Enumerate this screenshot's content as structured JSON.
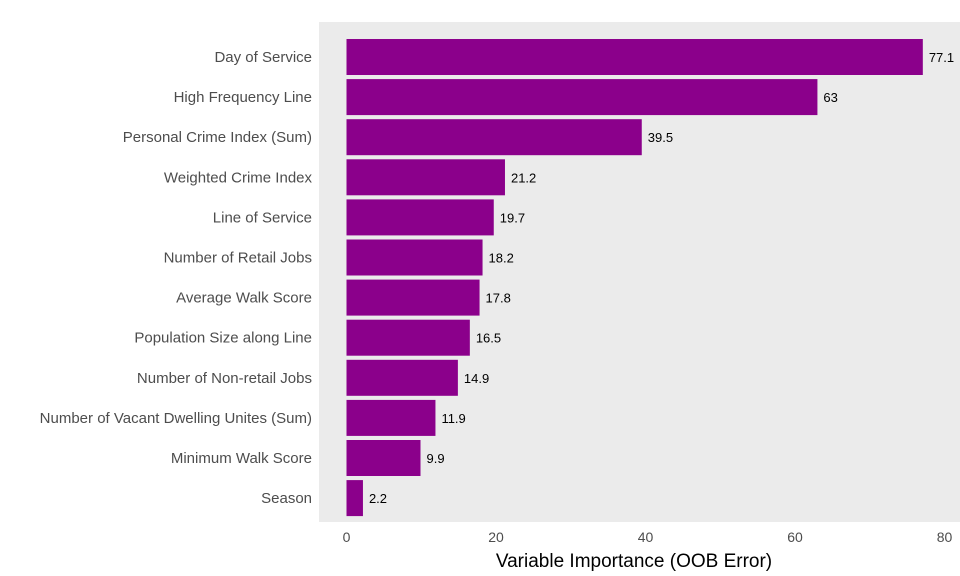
{
  "chart_data": {
    "type": "bar",
    "orientation": "horizontal",
    "categories": [
      "Day of Service",
      "High Frequency Line",
      "Personal Crime Index (Sum)",
      "Weighted Crime Index",
      "Line of Service",
      "Number of Retail Jobs",
      "Average Walk Score",
      "Population Size along Line",
      "Number of Non-retail Jobs",
      "Number of Vacant Dwelling Unites (Sum)",
      "Minimum Walk Score",
      "Season"
    ],
    "values": [
      77.1,
      63,
      39.5,
      21.2,
      19.7,
      18.2,
      17.8,
      16.5,
      14.9,
      11.9,
      9.9,
      2.2
    ],
    "value_labels": [
      "77.1",
      "63",
      "39.5",
      "21.2",
      "19.7",
      "18.2",
      "17.8",
      "16.5",
      "14.9",
      "11.9",
      "9.9",
      "2.2"
    ],
    "title": "",
    "xlabel": "Variable Importance (OOB Error)",
    "ylabel": "",
    "xlim": [
      0,
      80
    ],
    "xticks": [
      "0",
      "20",
      "40",
      "60",
      "80"
    ],
    "grid": false,
    "colors": {
      "bar": "#8b008b",
      "panel": "#ebebeb"
    }
  }
}
